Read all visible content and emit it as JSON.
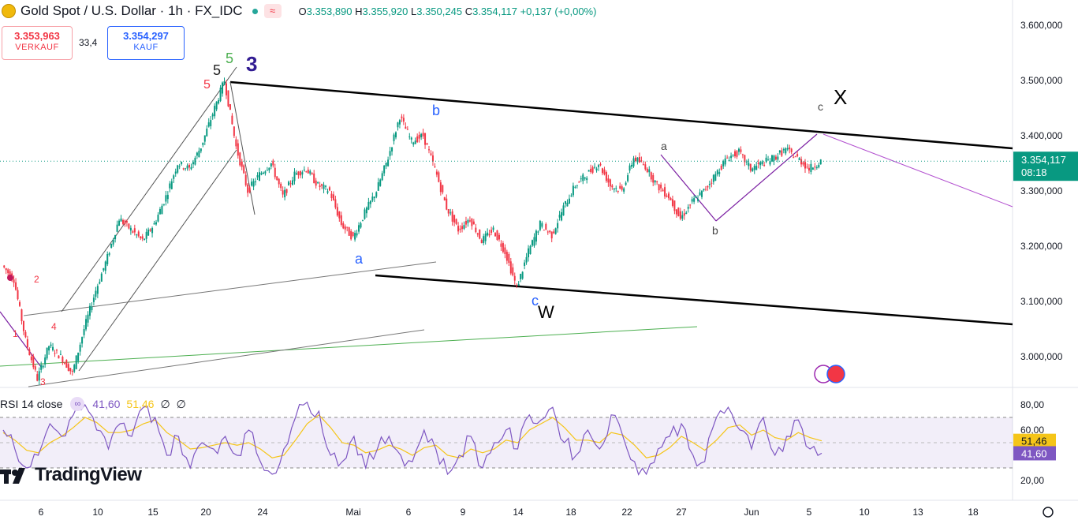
{
  "header": {
    "title": "Gold Spot / U.S. Dollar · 1h · FX_IDC",
    "open_label": "O",
    "open": "3.353,890",
    "high_label": "H",
    "high": "3.355,920",
    "low_label": "L",
    "low": "3.350,245",
    "close_label": "C",
    "close": "3.354,117",
    "change": "+0,137 (+0,00%)",
    "wave_icon": "wave-icon"
  },
  "trade": {
    "sell_price": "3.353,963",
    "sell_label": "VERKAUF",
    "spread": "33,4",
    "buy_price": "3.354,297",
    "buy_label": "KAUF"
  },
  "price_tag": {
    "value": "3.354,117",
    "countdown": "08:18",
    "color": "#089981"
  },
  "rsi": {
    "label": "RSI 14 close",
    "value": "41,60",
    "ma_value": "51,46",
    "null1": "∅",
    "null2": "∅",
    "ma_tag": "51,46",
    "value_tag": "41,60"
  },
  "logo_text": "TradingView",
  "colors": {
    "up": "#089981",
    "down": "#f23645",
    "rsi": "#7e57c2",
    "rsi_ma": "#f5c518"
  },
  "chart_data": [
    {
      "type": "line",
      "title": "Gold Spot / U.S. Dollar · 1h · FX_IDC",
      "x_ticks": [
        "6",
        "10",
        "15",
        "20",
        "24",
        "Mai",
        "6",
        "9",
        "14",
        "18",
        "22",
        "27",
        "Jun",
        "5",
        "10",
        "13",
        "18"
      ],
      "y_ticks": [
        "3.600,000",
        "3.500,000",
        "3.400,000",
        "3.300,000",
        "3.200,000",
        "3.100,000",
        "3.000,000"
      ],
      "ylim": [
        2945,
        3640
      ],
      "series": [
        {
          "values": [
            3165,
            3140,
            3030,
            2960,
            3020,
            3000,
            2970,
            3050,
            3120,
            3180,
            3250,
            3230,
            3210,
            3240,
            3290,
            3350,
            3340,
            3380,
            3440,
            3500,
            3380,
            3300,
            3330,
            3350,
            3290,
            3330,
            3340,
            3310,
            3300,
            3240,
            3215,
            3260,
            3300,
            3360,
            3435,
            3390,
            3400,
            3340,
            3270,
            3230,
            3250,
            3210,
            3230,
            3190,
            3125,
            3190,
            3240,
            3220,
            3270,
            3310,
            3330,
            3350,
            3310,
            3300,
            3360,
            3345,
            3310,
            3290,
            3250,
            3280,
            3300,
            3330,
            3360,
            3370,
            3340,
            3350,
            3360,
            3375,
            3360,
            3340,
            3354
          ]
        }
      ],
      "annotations": [
        "3",
        "5",
        "5",
        "5",
        "b",
        "a",
        "c",
        "W",
        "a",
        "b",
        "c",
        "X",
        "1",
        "2",
        "4",
        "3"
      ]
    },
    {
      "type": "line",
      "title": "RSI 14 close",
      "y_ticks": [
        "80,00",
        "60,00",
        "20,00"
      ],
      "ylim": [
        15,
        90
      ],
      "bands": [
        30,
        70
      ],
      "series": [
        {
          "name": "RSI",
          "values": [
            60,
            45,
            30,
            40,
            65,
            55,
            72,
            80,
            60,
            45,
            65,
            55,
            78,
            70,
            40,
            55,
            30,
            50,
            45,
            55,
            40,
            60,
            35,
            25,
            45,
            70,
            82,
            75,
            40,
            35,
            55,
            30,
            45,
            55,
            40,
            35,
            60,
            45,
            25,
            40,
            55,
            30,
            50,
            60,
            45,
            72,
            68,
            78,
            50,
            40,
            60,
            45,
            72,
            55,
            35,
            25,
            45,
            55,
            65,
            40,
            35,
            70,
            78,
            60,
            45,
            70,
            40,
            55,
            68,
            45,
            41.6
          ]
        },
        {
          "name": "MA",
          "values": [
            58,
            52,
            44,
            42,
            50,
            55,
            62,
            70,
            66,
            58,
            58,
            60,
            65,
            68,
            58,
            52,
            45,
            46,
            48,
            50,
            48,
            50,
            45,
            38,
            40,
            52,
            65,
            72,
            62,
            50,
            48,
            42,
            44,
            48,
            45,
            40,
            46,
            48,
            40,
            38,
            45,
            42,
            45,
            52,
            50,
            60,
            65,
            70,
            62,
            52,
            52,
            50,
            58,
            56,
            48,
            38,
            40,
            46,
            55,
            50,
            44,
            52,
            62,
            64,
            56,
            60,
            54,
            52,
            58,
            54,
            51.46
          ]
        }
      ]
    }
  ]
}
